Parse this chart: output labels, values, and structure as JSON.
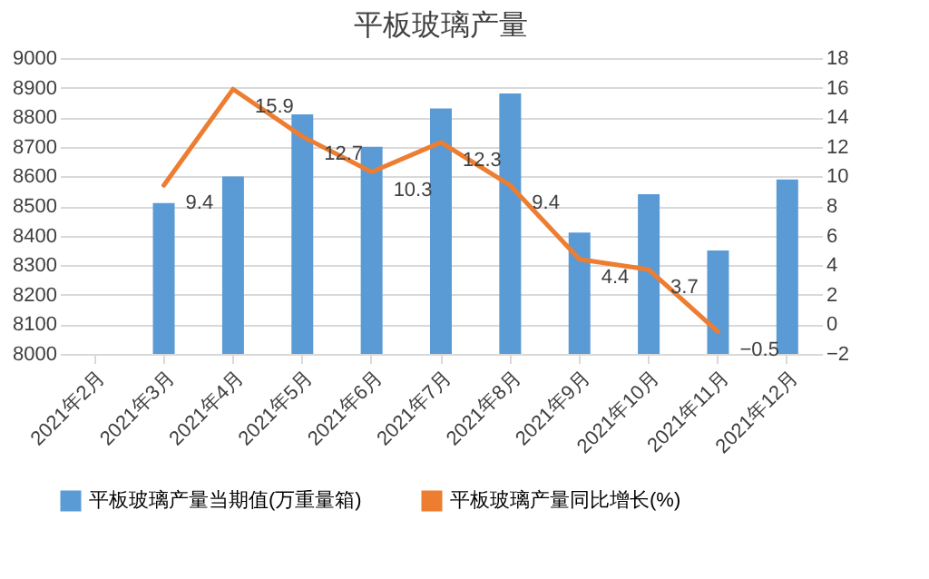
{
  "chart_data": {
    "type": "bar",
    "title": "平板玻璃产量",
    "categories": [
      "2021年2月",
      "2021年3月",
      "2021年4月",
      "2021年5月",
      "2021年6月",
      "2021年7月",
      "2021年8月",
      "2021年9月",
      "2021年10月",
      "2021年11月",
      "2021年12月"
    ],
    "series": [
      {
        "name": "平板玻璃产量当期值(万重量箱)",
        "type": "bar",
        "color": "#5b9bd5",
        "values": [
          null,
          8510,
          8600,
          8810,
          8700,
          8830,
          8880,
          8410,
          8540,
          8350,
          8590
        ]
      },
      {
        "name": "平板玻璃产量同比增长(%)",
        "type": "line",
        "axis": "y2",
        "color": "#ed7d31",
        "data_labels": true,
        "values": [
          null,
          9.4,
          15.9,
          12.7,
          10.3,
          12.3,
          9.4,
          4.4,
          3.7,
          -0.5,
          null
        ]
      }
    ],
    "ylim": [
      8000,
      9000
    ],
    "yticks": [
      8000,
      8100,
      8200,
      8300,
      8400,
      8500,
      8600,
      8700,
      8800,
      8900,
      9000
    ],
    "y2lim": [
      -2,
      18
    ],
    "y2ticks": [
      -2,
      0,
      2,
      4,
      6,
      8,
      10,
      12,
      14,
      16,
      18
    ],
    "grid": "y",
    "legend": "bottom"
  }
}
